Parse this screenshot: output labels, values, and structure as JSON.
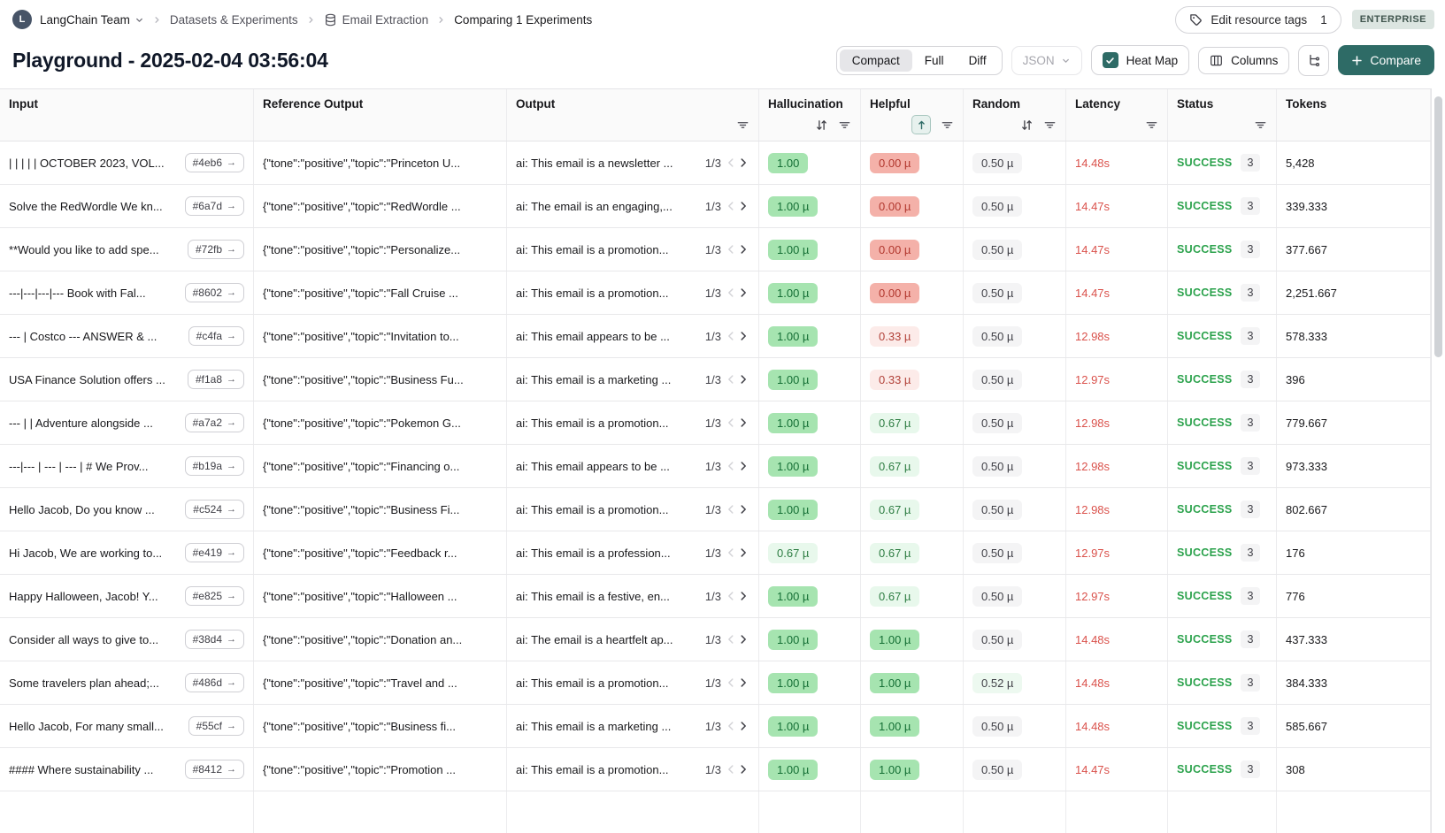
{
  "breadcrumb": {
    "avatar_letter": "L",
    "team": "LangChain Team",
    "items": [
      "Datasets & Experiments",
      "Email Extraction",
      "Comparing 1 Experiments"
    ]
  },
  "header_actions": {
    "edit_tags_label": "Edit resource tags",
    "edit_tags_count": "1",
    "plan_badge": "ENTERPRISE"
  },
  "title": "Playground - 2025-02-04 03:56:04",
  "toolbar": {
    "view_modes": [
      "Compact",
      "Full",
      "Diff"
    ],
    "active_mode": "Compact",
    "format_dropdown": "JSON",
    "heatmap_label": "Heat Map",
    "heatmap_checked": true,
    "columns_label": "Columns",
    "compare_label": "Compare",
    "accent_color": "#2e6b66"
  },
  "table": {
    "columns": [
      {
        "label": "Input",
        "icons": []
      },
      {
        "label": "Reference Output",
        "icons": []
      },
      {
        "label": "Output",
        "icons": [
          "filter"
        ]
      },
      {
        "label": "Hallucination",
        "icons": [
          "sort",
          "filter"
        ]
      },
      {
        "label": "Helpful",
        "icons": [
          "sort-asc-active",
          "filter"
        ]
      },
      {
        "label": "Random",
        "icons": [
          "sort",
          "filter"
        ]
      },
      {
        "label": "Latency",
        "icons": [
          "filter"
        ]
      },
      {
        "label": "Status",
        "icons": [
          "filter"
        ]
      },
      {
        "label": "Tokens",
        "icons": []
      }
    ],
    "rows": [
      {
        "input": "| | | | | OCTOBER 2023, VOL...",
        "id": "#4eb6",
        "ref": "{\"tone\":\"positive\",\"topic\":\"Princeton U...",
        "output": "ai: This email is a newsletter ...",
        "pager": "1/3",
        "hall": "1.00",
        "hall_tone": "green",
        "help": "0.00 µ",
        "help_tone": "red",
        "rand": "0.50 µ",
        "rand_tone": "neutral",
        "latency": "14.48s",
        "status": "SUCCESS",
        "status_count": "3",
        "tokens": "5,428"
      },
      {
        "input": "Solve the RedWordle We kn...",
        "id": "#6a7d",
        "ref": "{\"tone\":\"positive\",\"topic\":\"RedWordle ...",
        "output": "ai: The email is an engaging,...",
        "pager": "1/3",
        "hall": "1.00 µ",
        "hall_tone": "green",
        "help": "0.00 µ",
        "help_tone": "red",
        "rand": "0.50 µ",
        "rand_tone": "neutral",
        "latency": "14.47s",
        "status": "SUCCESS",
        "status_count": "3",
        "tokens": "339.333"
      },
      {
        "input": "**Would you like to add spe...",
        "id": "#72fb",
        "ref": "{\"tone\":\"positive\",\"topic\":\"Personalize...",
        "output": "ai: This email is a promotion...",
        "pager": "1/3",
        "hall": "1.00 µ",
        "hall_tone": "green",
        "help": "0.00 µ",
        "help_tone": "red",
        "rand": "0.50 µ",
        "rand_tone": "neutral",
        "latency": "14.47s",
        "status": "SUCCESS",
        "status_count": "3",
        "tokens": "377.667"
      },
      {
        "input": "---|---|---|--- Book with Fal...",
        "id": "#8602",
        "ref": "{\"tone\":\"positive\",\"topic\":\"Fall Cruise ...",
        "output": "ai: This email is a promotion...",
        "pager": "1/3",
        "hall": "1.00 µ",
        "hall_tone": "green",
        "help": "0.00 µ",
        "help_tone": "red",
        "rand": "0.50 µ",
        "rand_tone": "neutral",
        "latency": "14.47s",
        "status": "SUCCESS",
        "status_count": "3",
        "tokens": "2,251.667"
      },
      {
        "input": "--- | Costco --- ANSWER & ...",
        "id": "#c4fa",
        "ref": "{\"tone\":\"positive\",\"topic\":\"Invitation to...",
        "output": "ai: This email appears to be ...",
        "pager": "1/3",
        "hall": "1.00 µ",
        "hall_tone": "green",
        "help": "0.33 µ",
        "help_tone": "red-light",
        "rand": "0.50 µ",
        "rand_tone": "neutral",
        "latency": "12.98s",
        "status": "SUCCESS",
        "status_count": "3",
        "tokens": "578.333"
      },
      {
        "input": "USA Finance Solution offers ...",
        "id": "#f1a8",
        "ref": "{\"tone\":\"positive\",\"topic\":\"Business Fu...",
        "output": "ai: This email is a marketing ...",
        "pager": "1/3",
        "hall": "1.00 µ",
        "hall_tone": "green",
        "help": "0.33 µ",
        "help_tone": "red-light",
        "rand": "0.50 µ",
        "rand_tone": "neutral",
        "latency": "12.97s",
        "status": "SUCCESS",
        "status_count": "3",
        "tokens": "396"
      },
      {
        "input": "--- | | Adventure alongside ...",
        "id": "#a7a2",
        "ref": "{\"tone\":\"positive\",\"topic\":\"Pokemon G...",
        "output": "ai: This email is a promotion...",
        "pager": "1/3",
        "hall": "1.00 µ",
        "hall_tone": "green",
        "help": "0.67 µ",
        "help_tone": "green-light",
        "rand": "0.50 µ",
        "rand_tone": "neutral",
        "latency": "12.98s",
        "status": "SUCCESS",
        "status_count": "3",
        "tokens": "779.667"
      },
      {
        "input": "---|--- | --- | --- | # We Prov...",
        "id": "#b19a",
        "ref": "{\"tone\":\"positive\",\"topic\":\"Financing o...",
        "output": "ai: This email appears to be ...",
        "pager": "1/3",
        "hall": "1.00 µ",
        "hall_tone": "green",
        "help": "0.67 µ",
        "help_tone": "green-light",
        "rand": "0.50 µ",
        "rand_tone": "neutral",
        "latency": "12.98s",
        "status": "SUCCESS",
        "status_count": "3",
        "tokens": "973.333"
      },
      {
        "input": "Hello Jacob, Do you know ...",
        "id": "#c524",
        "ref": "{\"tone\":\"positive\",\"topic\":\"Business Fi...",
        "output": "ai: This email is a promotion...",
        "pager": "1/3",
        "hall": "1.00 µ",
        "hall_tone": "green",
        "help": "0.67 µ",
        "help_tone": "green-light",
        "rand": "0.50 µ",
        "rand_tone": "neutral",
        "latency": "12.98s",
        "status": "SUCCESS",
        "status_count": "3",
        "tokens": "802.667"
      },
      {
        "input": "Hi Jacob, We are working to...",
        "id": "#e419",
        "ref": "{\"tone\":\"positive\",\"topic\":\"Feedback r...",
        "output": "ai: This email is a profession...",
        "pager": "1/3",
        "hall": "0.67 µ",
        "hall_tone": "green-light",
        "help": "0.67 µ",
        "help_tone": "green-light",
        "rand": "0.50 µ",
        "rand_tone": "neutral",
        "latency": "12.97s",
        "status": "SUCCESS",
        "status_count": "3",
        "tokens": "176"
      },
      {
        "input": "Happy Halloween, Jacob! Y...",
        "id": "#e825",
        "ref": "{\"tone\":\"positive\",\"topic\":\"Halloween ...",
        "output": "ai: This email is a festive, en...",
        "pager": "1/3",
        "hall": "1.00 µ",
        "hall_tone": "green",
        "help": "0.67 µ",
        "help_tone": "green-light",
        "rand": "0.50 µ",
        "rand_tone": "neutral",
        "latency": "12.97s",
        "status": "SUCCESS",
        "status_count": "3",
        "tokens": "776"
      },
      {
        "input": "Consider all ways to give to...",
        "id": "#38d4",
        "ref": "{\"tone\":\"positive\",\"topic\":\"Donation an...",
        "output": "ai: The email is a heartfelt ap...",
        "pager": "1/3",
        "hall": "1.00 µ",
        "hall_tone": "green",
        "help": "1.00 µ",
        "help_tone": "green",
        "rand": "0.50 µ",
        "rand_tone": "neutral",
        "latency": "14.48s",
        "status": "SUCCESS",
        "status_count": "3",
        "tokens": "437.333"
      },
      {
        "input": "Some travelers plan ahead;...",
        "id": "#486d",
        "ref": "{\"tone\":\"positive\",\"topic\":\"Travel and ...",
        "output": "ai: This email is a promotion...",
        "pager": "1/3",
        "hall": "1.00 µ",
        "hall_tone": "green",
        "help": "1.00 µ",
        "help_tone": "green",
        "rand": "0.52 µ",
        "rand_tone": "neutral-green",
        "latency": "14.48s",
        "status": "SUCCESS",
        "status_count": "3",
        "tokens": "384.333"
      },
      {
        "input": "Hello Jacob, For many small...",
        "id": "#55cf",
        "ref": "{\"tone\":\"positive\",\"topic\":\"Business fi...",
        "output": "ai: This email is a marketing ...",
        "pager": "1/3",
        "hall": "1.00 µ",
        "hall_tone": "green",
        "help": "1.00 µ",
        "help_tone": "green",
        "rand": "0.50 µ",
        "rand_tone": "neutral",
        "latency": "14.48s",
        "status": "SUCCESS",
        "status_count": "3",
        "tokens": "585.667"
      },
      {
        "input": "#### Where sustainability ...",
        "id": "#8412",
        "ref": "{\"tone\":\"positive\",\"topic\":\"Promotion ...",
        "output": "ai: This email is a promotion...",
        "pager": "1/3",
        "hall": "1.00 µ",
        "hall_tone": "green",
        "help": "1.00 µ",
        "help_tone": "green",
        "rand": "0.50 µ",
        "rand_tone": "neutral",
        "latency": "14.47s",
        "status": "SUCCESS",
        "status_count": "3",
        "tokens": "308"
      }
    ]
  }
}
